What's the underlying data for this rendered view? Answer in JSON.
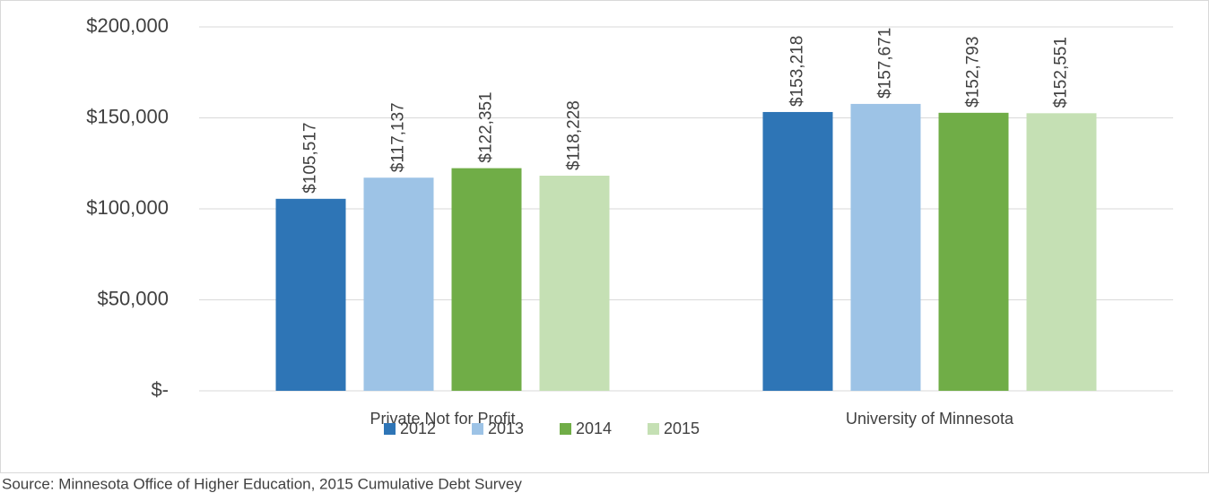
{
  "chart_data": {
    "type": "bar",
    "categories": [
      "Private Not for Profit",
      "University of Minnesota"
    ],
    "series": [
      {
        "name": "2012",
        "color": "#2e75b6",
        "values": [
          105517,
          153218
        ],
        "value_labels": [
          "$105,517",
          "$153,218"
        ]
      },
      {
        "name": "2013",
        "color": "#9dc3e6",
        "values": [
          117137,
          157671
        ],
        "value_labels": [
          "$117,137",
          "$157,671"
        ]
      },
      {
        "name": "2014",
        "color": "#70ad47",
        "values": [
          122351,
          152793
        ],
        "value_labels": [
          "$122,351",
          "$152,793"
        ]
      },
      {
        "name": "2015",
        "color": "#c5e0b4",
        "values": [
          118228,
          152551
        ],
        "value_labels": [
          "$118,228",
          "$152,551"
        ]
      }
    ],
    "ylim": [
      0,
      200000
    ],
    "yticks": [
      {
        "value": 0,
        "label": "$-"
      },
      {
        "value": 50000,
        "label": "$50,000"
      },
      {
        "value": 100000,
        "label": "$100,000"
      },
      {
        "value": 150000,
        "label": "$150,000"
      },
      {
        "value": 200000,
        "label": "$200,000"
      }
    ],
    "grid": true,
    "legend": "bottom",
    "source": "Source: Minnesota Office of Higher Education, 2015 Cumulative Debt Survey"
  }
}
